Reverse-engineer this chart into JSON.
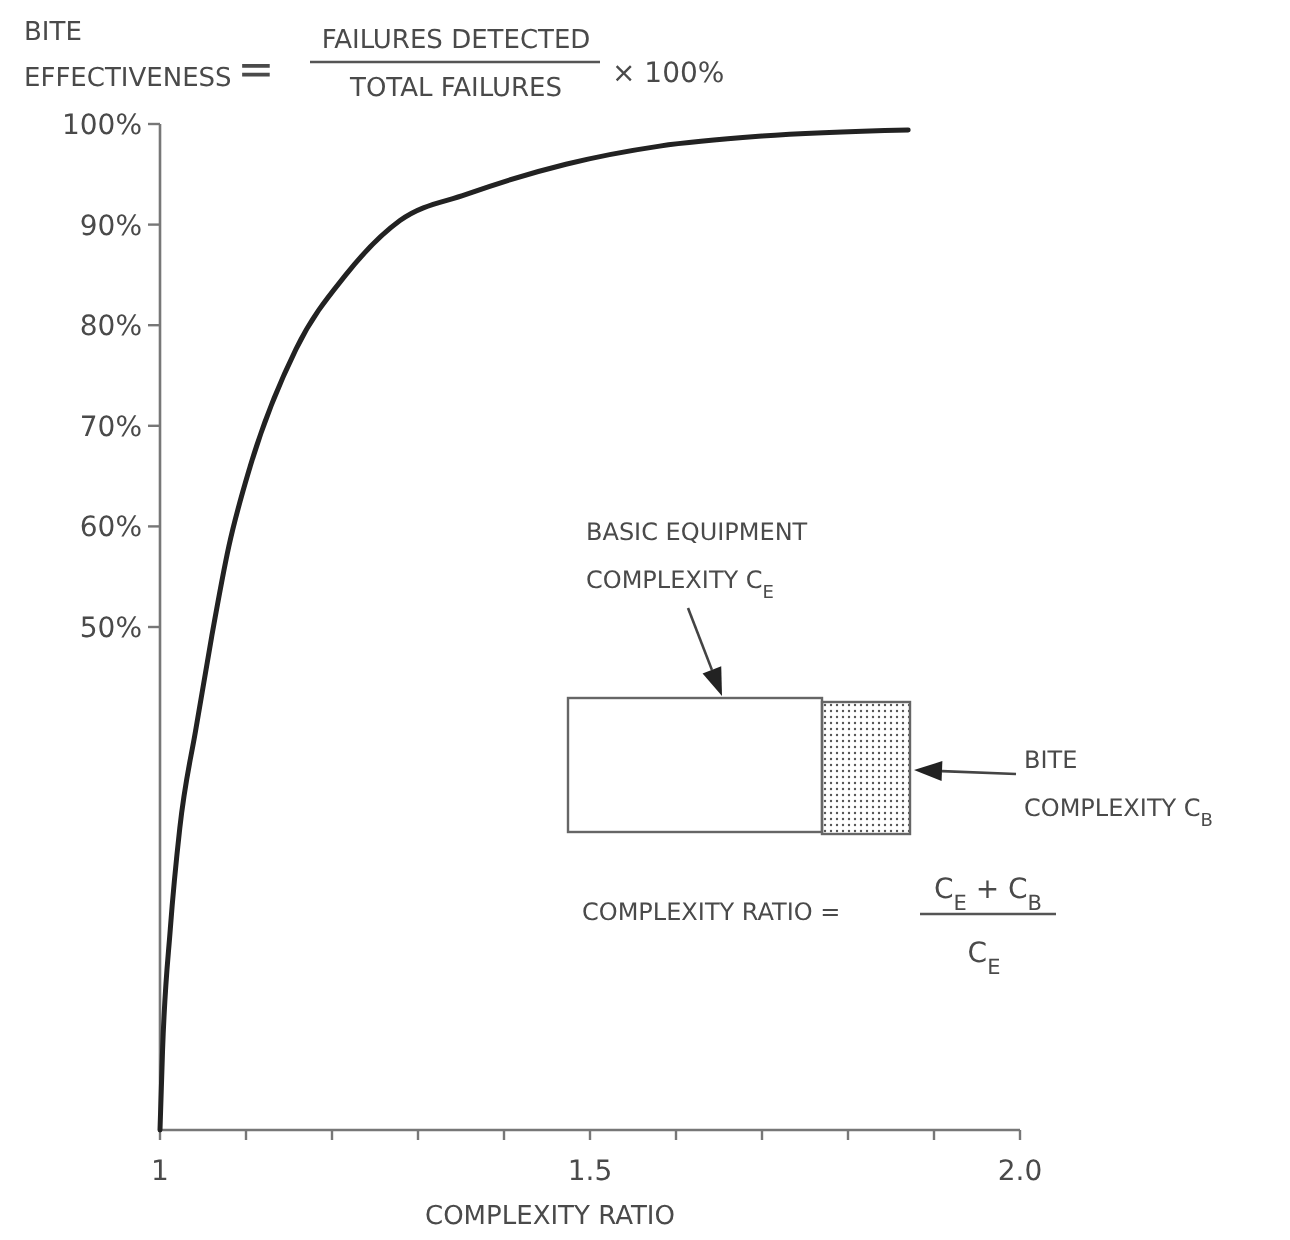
{
  "chart_data": {
    "type": "line",
    "ylabel": "BITE EFFECTIVENESS",
    "xlabel": "COMPLEXITY RATIO",
    "annotations": [
      "=",
      "FAILURES DETECTED",
      "TOTAL FAILURES",
      "× 100%",
      "BASIC EQUIPMENT",
      "COMPLEXITY C$_{E}$",
      "BITE",
      "COMPLEXITY C$_{B}$",
      "COMPLEXITY RATIO =",
      "C$_{E}$ + C$_{B}$",
      "C$_{E}$"
    ],
    "xlim": [
      1,
      2
    ],
    "ylim": [
      0,
      100
    ],
    "xticks": [
      {
        "value": 1,
        "label": "1"
      },
      {
        "value": 1.1,
        "label": null
      },
      {
        "value": 1.2,
        "label": null
      },
      {
        "value": 1.3,
        "label": null
      },
      {
        "value": 1.4,
        "label": null
      },
      1.5,
      {
        "value": 1.6,
        "label": null
      },
      {
        "value": 1.7,
        "label": null
      },
      {
        "value": 1.8,
        "label": null
      },
      {
        "value": 1.9,
        "label": null
      },
      {
        "value": 2,
        "label": "2.0"
      }
    ],
    "yticks": [
      {
        "value": 50,
        "label": "50%"
      },
      {
        "value": 60,
        "label": "60%"
      },
      {
        "value": 70,
        "label": "70%"
      },
      {
        "value": 80,
        "label": "80%"
      },
      {
        "value": 90,
        "label": "90%"
      },
      {
        "value": 100,
        "label": "100%"
      }
    ],
    "series": [
      {
        "color": "#222222",
        "x": [
          1,
          1.003,
          1.012,
          1.023,
          1.042,
          1.06,
          1.08,
          1.105,
          1.158,
          1.216,
          1.279,
          1.356,
          1.472,
          1.581,
          1.7,
          1.87
        ],
        "values": [
          0,
          8,
          20,
          30,
          40,
          49,
          58,
          66,
          77.6,
          85,
          90.4,
          93,
          96,
          97.8,
          98.8,
          99.4
        ]
      }
    ]
  }
}
